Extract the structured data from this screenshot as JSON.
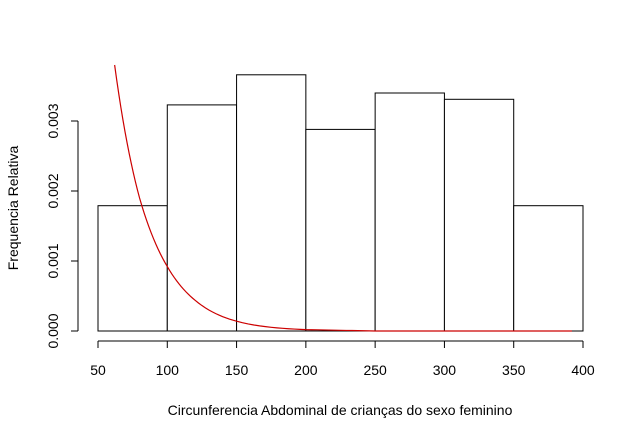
{
  "chart_data": {
    "type": "bar",
    "xlabel": "Circunferencia Abdominal de crianças do sexo feminino",
    "ylabel": "Frequencia Relativa",
    "xlim": [
      50,
      400
    ],
    "ylim": [
      0,
      0.0038
    ],
    "x_ticks": [
      50,
      100,
      150,
      200,
      250,
      300,
      350,
      400
    ],
    "x_tick_labels": [
      "50",
      "100",
      "150",
      "200",
      "250",
      "300",
      "350",
      "400"
    ],
    "y_ticks": [
      0.0,
      0.001,
      0.002,
      0.003
    ],
    "y_tick_labels": [
      "0.000",
      "0.001",
      "0.002",
      "0.003"
    ],
    "bins": [
      {
        "from": 50,
        "to": 100,
        "value": 0.00179
      },
      {
        "from": 100,
        "to": 150,
        "value": 0.00323
      },
      {
        "from": 150,
        "to": 200,
        "value": 0.00366
      },
      {
        "from": 200,
        "to": 250,
        "value": 0.00288
      },
      {
        "from": 250,
        "to": 300,
        "value": 0.0034
      },
      {
        "from": 300,
        "to": 350,
        "value": 0.00331
      },
      {
        "from": 350,
        "to": 400,
        "value": 0.00179
      }
    ],
    "curve": {
      "type": "exponential-decay",
      "color": "#cc0000",
      "x_range": [
        60,
        392
      ],
      "points": [
        [
          62,
          0.0038
        ],
        [
          80,
          0.0019
        ],
        [
          100,
          0.00092
        ],
        [
          120,
          0.00044
        ],
        [
          150,
          0.00014
        ],
        [
          200,
          2e-05
        ],
        [
          250,
          0.0
        ],
        [
          392,
          0.0
        ]
      ]
    },
    "bar_fill": "#ffffff",
    "bar_stroke": "#000000",
    "grid": false,
    "legend": "none"
  }
}
